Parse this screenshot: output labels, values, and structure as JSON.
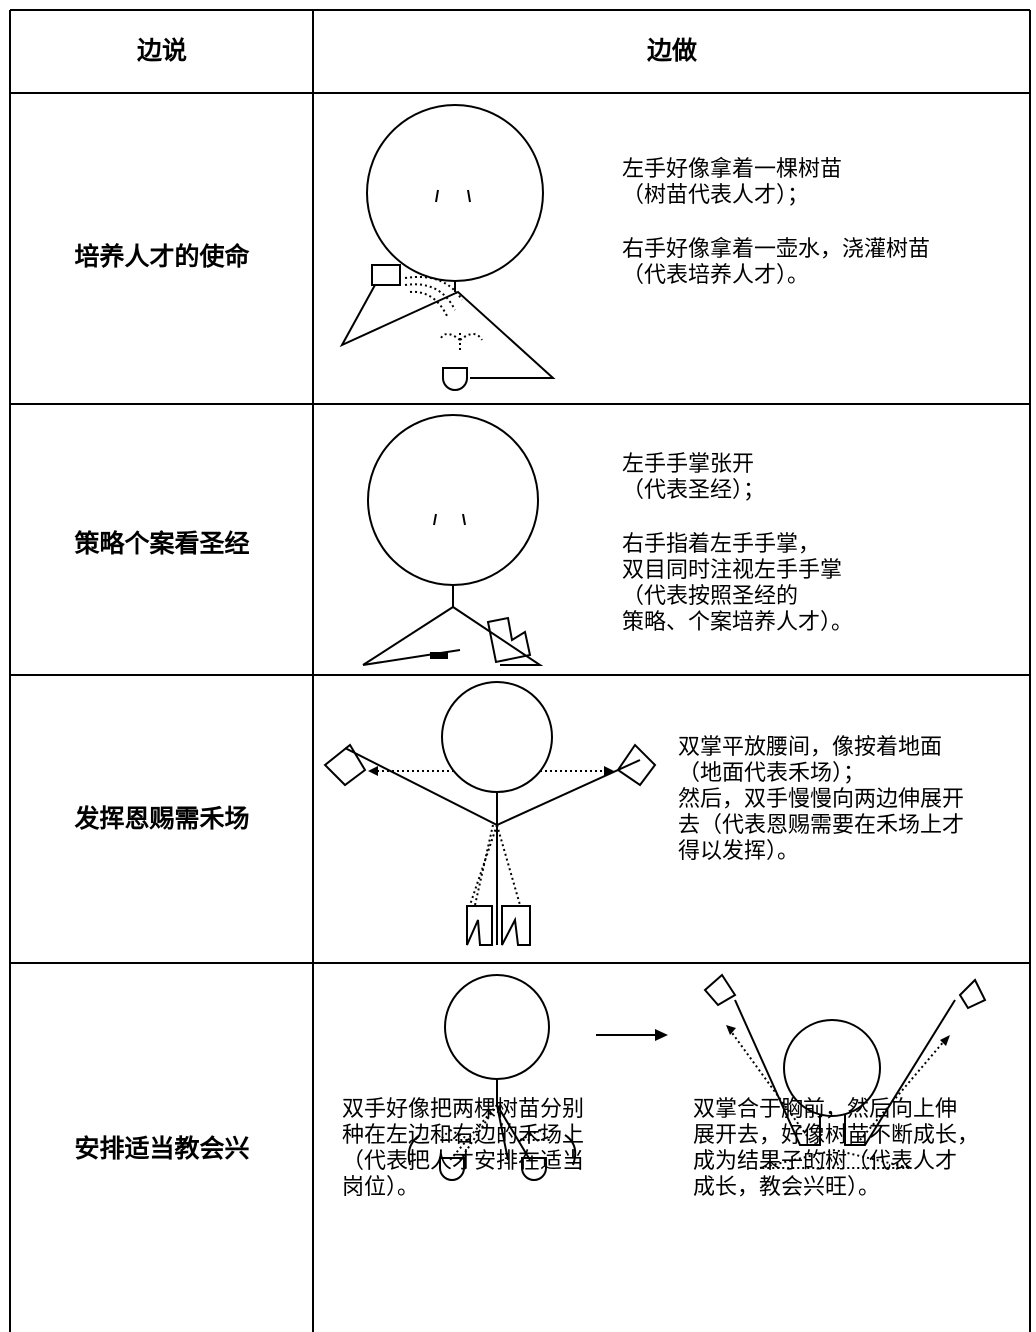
{
  "table": {
    "header": [
      "边说",
      "边做"
    ],
    "rows": [
      {
        "say": "培养人才的使命",
        "do": [
          [
            "左手好像拿着一棵树苗",
            "（树苗代表人才）；"
          ],
          [
            "右手好像拿着一壶水，浇灌树苗",
            "（代表培养人才）。"
          ]
        ]
      },
      {
        "say": "策略个案看圣经",
        "do": [
          [
            "左手手掌张开",
            "（代表圣经）；"
          ],
          [
            "右手指着左手手掌，",
            "双目同时注视左手手掌",
            "（代表按照圣经的",
            "策略、个案培养人才）。"
          ]
        ]
      },
      {
        "say": "发挥恩赐需禾场",
        "do": [
          [
            "双掌平放腰间，像按着地面",
            "（地面代表禾场）；",
            "然后，双手慢慢向两边伸展开",
            "去（代表恩赐需要在禾场上才",
            "得以发挥）。"
          ]
        ]
      },
      {
        "say": "安排适当教会兴",
        "do": [
          [
            "双手好像把两棵树苗分别",
            "种在左边和右边的禾场上",
            "（代表把人才安排在适当",
            "岗位）。"
          ],
          [
            "双掌合于胸前，然后向上伸",
            "展开去，好像树苗不断成长，",
            "成为结果子的树（代表人才",
            "成长，教会兴旺）。"
          ]
        ]
      }
    ]
  }
}
